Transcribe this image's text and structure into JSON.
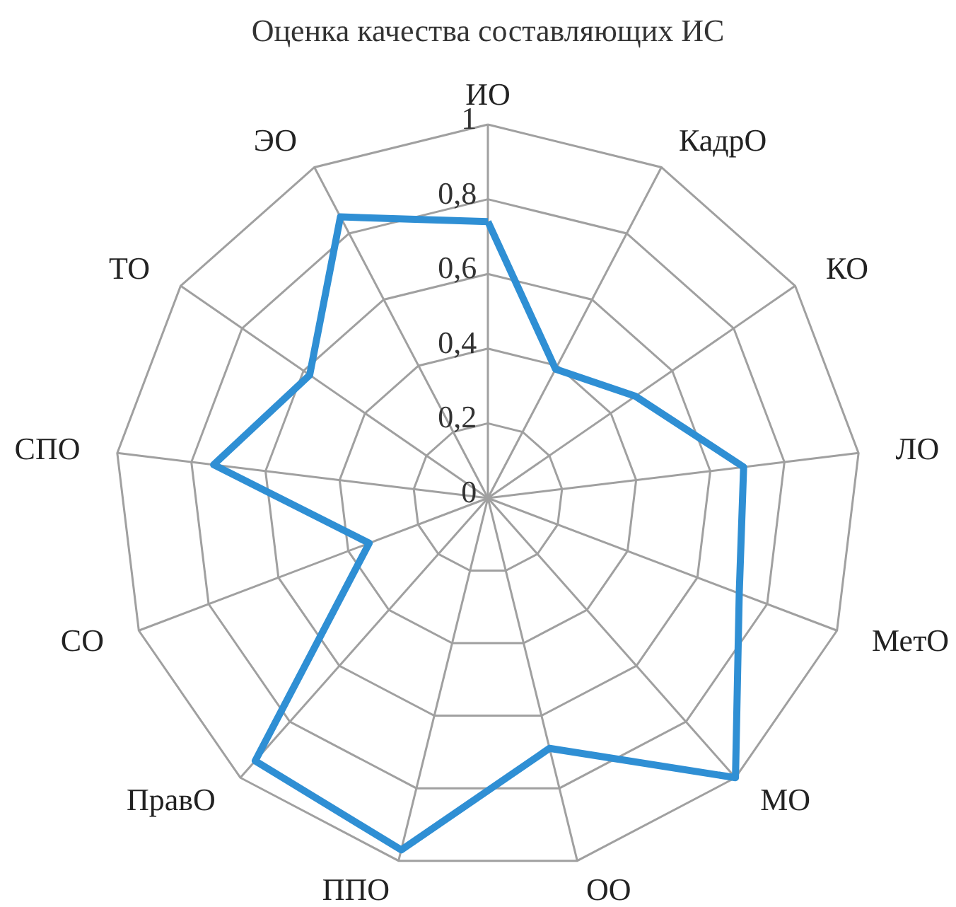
{
  "chart_data": {
    "type": "radar",
    "title": "Оценка качества составляющих ИС",
    "categories": [
      "ИО",
      "КадрО",
      "КО",
      "ЛО",
      "МетО",
      "МО",
      "ОО",
      "ППО",
      "ПравО",
      "СО",
      "СПО",
      "ТО",
      "ЭО"
    ],
    "series": [
      {
        "color": "#2f8fd4",
        "values": [
          0.74,
          0.39,
          0.48,
          0.69,
          0.72,
          1.0,
          0.69,
          0.97,
          0.94,
          0.34,
          0.74,
          0.58,
          0.85
        ]
      }
    ],
    "ylim": [
      0,
      1
    ],
    "yticks": [
      {
        "value": 0,
        "label": "0"
      },
      {
        "value": 0.2,
        "label": "0,2"
      },
      {
        "value": 0.4,
        "label": "0,4"
      },
      {
        "value": 0.6,
        "label": "0,6"
      },
      {
        "value": 0.8,
        "label": "0,8"
      },
      {
        "value": 1,
        "label": "1"
      }
    ],
    "grid": true,
    "marker": "none",
    "line_style": "solid"
  }
}
